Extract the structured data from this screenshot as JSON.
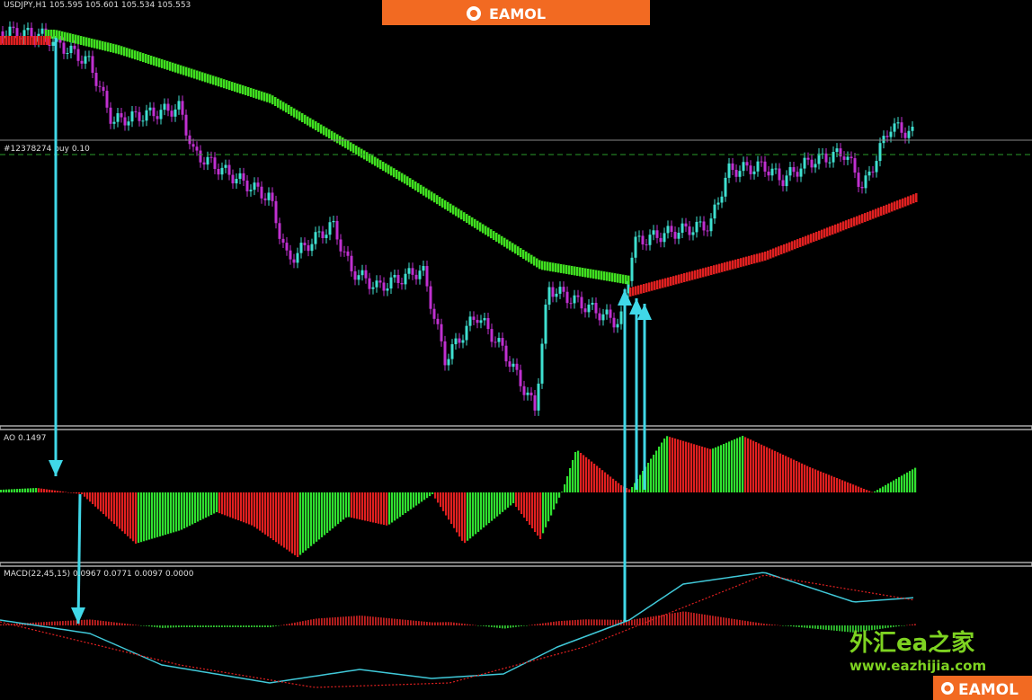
{
  "header": {
    "symbol": "USDJPY,H1  105.595 105.601 105.534 105.553",
    "logo": "EAMOL"
  },
  "order_line": "#12378274 buy 0.10",
  "ao_label": "AO 0.1497",
  "macd_label": "MACD(22,45,15) 0.0967 0.0771 0.0097 0.0000",
  "watermark": {
    "title": "外汇ea之家",
    "url": "www.eazhijia.com",
    "logo": "EAMOL"
  }
}
